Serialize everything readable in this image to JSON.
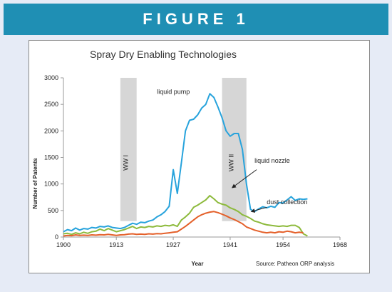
{
  "figure_label": "FIGURE 1",
  "colors": {
    "banner": "#1f8fb4",
    "frame": "#e6ebf6",
    "shade": "#d6d6d6"
  },
  "chart_data": {
    "type": "line",
    "title": "Spray Dry Enabling Technologies",
    "xlabel": "Year",
    "ylabel": "Number of Patents",
    "xlim": [
      1900,
      1968
    ],
    "ylim": [
      0,
      3000
    ],
    "x_ticks": [
      1900,
      1913,
      1927,
      1941,
      1954,
      1968
    ],
    "y_ticks": [
      0,
      500,
      1000,
      1500,
      2000,
      2500,
      3000
    ],
    "grid": false,
    "legend": "none",
    "shaded_periods": [
      {
        "label": "WW I",
        "start": 1914,
        "end": 1918
      },
      {
        "label": "WW II",
        "start": 1939,
        "end": 1945
      }
    ],
    "annotations": [
      {
        "text": "liquid pump",
        "series": "liquid pump"
      },
      {
        "text": "liquid nozzle",
        "series": "liquid nozzle"
      },
      {
        "text": "dust collection",
        "series": "dust collection"
      }
    ],
    "source": "Source: Patheon ORP analysis",
    "series": [
      {
        "name": "liquid pump",
        "color": "#27a3dc",
        "x": [
          1900,
          1901,
          1902,
          1903,
          1904,
          1905,
          1906,
          1907,
          1908,
          1909,
          1910,
          1911,
          1912,
          1913,
          1914,
          1915,
          1916,
          1917,
          1918,
          1919,
          1920,
          1921,
          1922,
          1923,
          1924,
          1925,
          1926,
          1927,
          1928,
          1929,
          1930,
          1931,
          1932,
          1933,
          1934,
          1935,
          1936,
          1937,
          1938,
          1939,
          1940,
          1941,
          1942,
          1943,
          1944,
          1945,
          1946,
          1947,
          1948,
          1949,
          1950,
          1951,
          1952,
          1953,
          1954,
          1955,
          1956,
          1957,
          1958,
          1959,
          1960
        ],
        "y": [
          100,
          140,
          120,
          170,
          130,
          160,
          150,
          180,
          170,
          200,
          190,
          210,
          180,
          170,
          160,
          180,
          220,
          260,
          240,
          280,
          270,
          300,
          320,
          380,
          420,
          480,
          580,
          1270,
          820,
          1400,
          2000,
          2200,
          2220,
          2300,
          2430,
          2500,
          2700,
          2630,
          2450,
          2250,
          2000,
          1900,
          1950,
          1950,
          1650,
          1000,
          520,
          480,
          530,
          570,
          550,
          580,
          560,
          650,
          640,
          700,
          760,
          690,
          720,
          710,
          720
        ]
      },
      {
        "name": "liquid nozzle",
        "color": "#8dba3c",
        "x": [
          1900,
          1901,
          1902,
          1903,
          1904,
          1905,
          1906,
          1907,
          1908,
          1909,
          1910,
          1911,
          1912,
          1913,
          1914,
          1915,
          1916,
          1917,
          1918,
          1919,
          1920,
          1921,
          1922,
          1923,
          1924,
          1925,
          1926,
          1927,
          1928,
          1929,
          1930,
          1931,
          1932,
          1933,
          1934,
          1935,
          1936,
          1937,
          1938,
          1939,
          1940,
          1941,
          1942,
          1943,
          1944,
          1945,
          1946,
          1947,
          1948,
          1949,
          1950,
          1951,
          1952,
          1953,
          1954,
          1955,
          1956,
          1957,
          1958,
          1959,
          1960
        ],
        "y": [
          60,
          70,
          50,
          80,
          60,
          90,
          70,
          100,
          110,
          150,
          120,
          160,
          130,
          100,
          120,
          140,
          170,
          200,
          160,
          190,
          180,
          200,
          190,
          210,
          200,
          220,
          210,
          230,
          200,
          320,
          380,
          450,
          560,
          600,
          650,
          700,
          780,
          720,
          650,
          620,
          600,
          550,
          520,
          480,
          420,
          390,
          350,
          300,
          280,
          250,
          230,
          220,
          210,
          200,
          210,
          200,
          220,
          220,
          180,
          60,
          20
        ]
      },
      {
        "name": "dust collection",
        "color": "#e4602a",
        "x": [
          1900,
          1901,
          1902,
          1903,
          1904,
          1905,
          1906,
          1907,
          1908,
          1909,
          1910,
          1911,
          1912,
          1913,
          1914,
          1915,
          1916,
          1917,
          1918,
          1919,
          1920,
          1921,
          1922,
          1923,
          1924,
          1925,
          1926,
          1927,
          1928,
          1929,
          1930,
          1931,
          1932,
          1933,
          1934,
          1935,
          1936,
          1937,
          1938,
          1939,
          1940,
          1941,
          1942,
          1943,
          1944,
          1945,
          1946,
          1947,
          1948,
          1949,
          1950,
          1951,
          1952,
          1953,
          1954,
          1955,
          1956,
          1957,
          1958,
          1959
        ],
        "y": [
          20,
          30,
          25,
          40,
          30,
          35,
          30,
          40,
          35,
          45,
          40,
          50,
          40,
          30,
          40,
          45,
          55,
          60,
          50,
          55,
          50,
          60,
          55,
          65,
          60,
          70,
          80,
          90,
          100,
          150,
          200,
          260,
          320,
          380,
          420,
          450,
          470,
          480,
          460,
          430,
          400,
          360,
          330,
          290,
          250,
          190,
          160,
          130,
          110,
          90,
          80,
          90,
          80,
          100,
          90,
          110,
          100,
          80,
          90,
          80
        ]
      }
    ]
  }
}
